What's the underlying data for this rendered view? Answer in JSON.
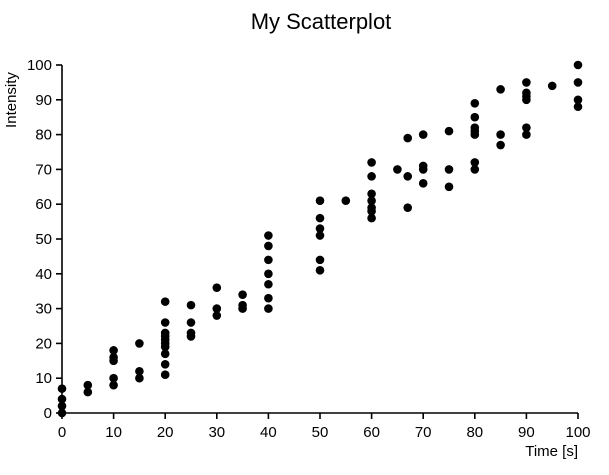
{
  "chart_data": {
    "type": "scatter",
    "title": "My Scatterplot",
    "xlabel": "Time [s]",
    "ylabel": "Intensity",
    "xlim": [
      0,
      100
    ],
    "ylim": [
      0,
      100
    ],
    "xticks": [
      "0",
      "10",
      "20",
      "30",
      "40",
      "50",
      "60",
      "70",
      "80",
      "90",
      "100"
    ],
    "yticks": [
      "0",
      "10",
      "20",
      "30",
      "40",
      "50",
      "60",
      "70",
      "80",
      "90",
      "100"
    ],
    "grid": false,
    "marker_color": "#000000",
    "points": [
      [
        0,
        0
      ],
      [
        0,
        2
      ],
      [
        0,
        4
      ],
      [
        0,
        7
      ],
      [
        5,
        6
      ],
      [
        5,
        8
      ],
      [
        10,
        8
      ],
      [
        10,
        10
      ],
      [
        10,
        15
      ],
      [
        10,
        16
      ],
      [
        10,
        18
      ],
      [
        15,
        10
      ],
      [
        15,
        12
      ],
      [
        15,
        20
      ],
      [
        20,
        11
      ],
      [
        20,
        14
      ],
      [
        20,
        17
      ],
      [
        20,
        19
      ],
      [
        20,
        20
      ],
      [
        20,
        21
      ],
      [
        20,
        22
      ],
      [
        20,
        23
      ],
      [
        20,
        26
      ],
      [
        20,
        32
      ],
      [
        25,
        22
      ],
      [
        25,
        23
      ],
      [
        25,
        26
      ],
      [
        25,
        31
      ],
      [
        30,
        28
      ],
      [
        30,
        30
      ],
      [
        30,
        36
      ],
      [
        35,
        30
      ],
      [
        35,
        31
      ],
      [
        35,
        34
      ],
      [
        40,
        30
      ],
      [
        40,
        33
      ],
      [
        40,
        37
      ],
      [
        40,
        40
      ],
      [
        40,
        44
      ],
      [
        40,
        48
      ],
      [
        40,
        51
      ],
      [
        50,
        41
      ],
      [
        50,
        44
      ],
      [
        50,
        51
      ],
      [
        50,
        53
      ],
      [
        50,
        56
      ],
      [
        50,
        61
      ],
      [
        55,
        61
      ],
      [
        60,
        56
      ],
      [
        60,
        58
      ],
      [
        60,
        59
      ],
      [
        60,
        61
      ],
      [
        60,
        63
      ],
      [
        60,
        68
      ],
      [
        60,
        72
      ],
      [
        65,
        70
      ],
      [
        67,
        59
      ],
      [
        67,
        68
      ],
      [
        67,
        79
      ],
      [
        70,
        66
      ],
      [
        70,
        70
      ],
      [
        70,
        71
      ],
      [
        70,
        80
      ],
      [
        75,
        65
      ],
      [
        75,
        70
      ],
      [
        75,
        81
      ],
      [
        80,
        70
      ],
      [
        80,
        72
      ],
      [
        80,
        80
      ],
      [
        80,
        81
      ],
      [
        80,
        82
      ],
      [
        80,
        85
      ],
      [
        80,
        89
      ],
      [
        85,
        77
      ],
      [
        85,
        80
      ],
      [
        85,
        93
      ],
      [
        90,
        80
      ],
      [
        90,
        82
      ],
      [
        90,
        90
      ],
      [
        90,
        91
      ],
      [
        90,
        92
      ],
      [
        90,
        95
      ],
      [
        95,
        94
      ],
      [
        100,
        88
      ],
      [
        100,
        90
      ],
      [
        100,
        95
      ],
      [
        100,
        100
      ]
    ]
  }
}
